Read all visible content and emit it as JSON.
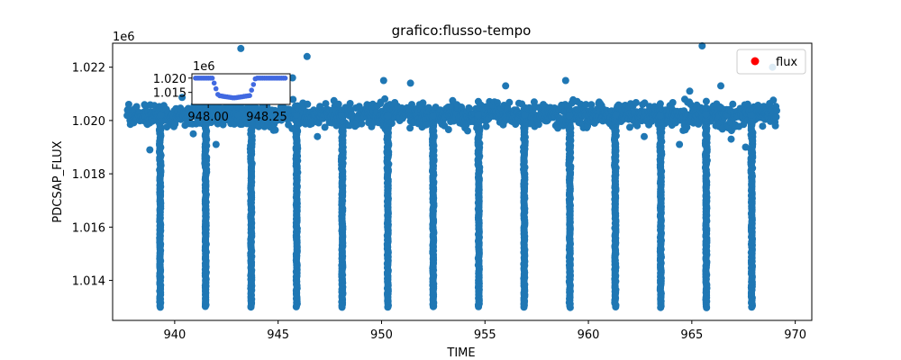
{
  "chart_data": {
    "type": "scatter",
    "title": "grafico:flusso-tempo",
    "xlabel": "TIME",
    "ylabel": "PDCSAP_FLUX",
    "xlim": [
      937.0,
      970.8
    ],
    "ylim": [
      1012.5,
      1022.9
    ],
    "y_scale_label": "1e6",
    "xticks": [
      940,
      945,
      950,
      955,
      960,
      965,
      970
    ],
    "xtick_labels": [
      "940",
      "945",
      "950",
      "955",
      "960",
      "965",
      "970"
    ],
    "yticks": [
      1014,
      1016,
      1018,
      1020,
      1022
    ],
    "ytick_labels": [
      "1.014",
      "1.016",
      "1.018",
      "1.020",
      "1.022"
    ],
    "legend": {
      "label": "flux",
      "marker_color": "#ff0000",
      "location": "upper right"
    },
    "series_color": "#1f77b4",
    "time_range": [
      937.7,
      969.1
    ],
    "baseline_flux": 1020.2,
    "baseline_scatter": 0.35,
    "transit_times": [
      939.3,
      941.5,
      943.7,
      945.9,
      948.1,
      950.3,
      952.5,
      954.7,
      956.9,
      959.1,
      961.3,
      963.5,
      965.7,
      967.9
    ],
    "transit_depth_min": 1013.0,
    "outliers": [
      {
        "x": 943.2,
        "y": 1022.7
      },
      {
        "x": 946.4,
        "y": 1022.4
      },
      {
        "x": 965.5,
        "y": 1022.8
      },
      {
        "x": 968.9,
        "y": 1022.0
      },
      {
        "x": 945.7,
        "y": 1021.6
      },
      {
        "x": 950.1,
        "y": 1021.5
      },
      {
        "x": 951.4,
        "y": 1021.4
      },
      {
        "x": 956.0,
        "y": 1021.3
      },
      {
        "x": 958.9,
        "y": 1021.5
      },
      {
        "x": 964.9,
        "y": 1021.1
      },
      {
        "x": 966.4,
        "y": 1021.3
      },
      {
        "x": 940.9,
        "y": 1019.5
      },
      {
        "x": 942.0,
        "y": 1019.1
      },
      {
        "x": 946.9,
        "y": 1019.4
      },
      {
        "x": 962.7,
        "y": 1019.4
      },
      {
        "x": 964.4,
        "y": 1019.1
      },
      {
        "x": 966.9,
        "y": 1019.3
      },
      {
        "x": 967.6,
        "y": 1019.0
      },
      {
        "x": 938.8,
        "y": 1018.9
      }
    ],
    "inset": {
      "type": "scatter",
      "marker_color": "#4169e1",
      "xlim": [
        947.93,
        948.35
      ],
      "ylim": [
        1010.8,
        1021.5
      ],
      "xticks": [
        948.0,
        948.25
      ],
      "xtick_labels": [
        "948.00",
        "948.25"
      ],
      "yticks": [
        1015,
        1020
      ],
      "ytick_labels": [
        "1.015",
        "1.020"
      ],
      "y_scale_label": "1e6",
      "transit_center": 948.11,
      "transit_half_width": 0.08,
      "baseline": 1020.0,
      "depth_min": 1012.7
    }
  }
}
